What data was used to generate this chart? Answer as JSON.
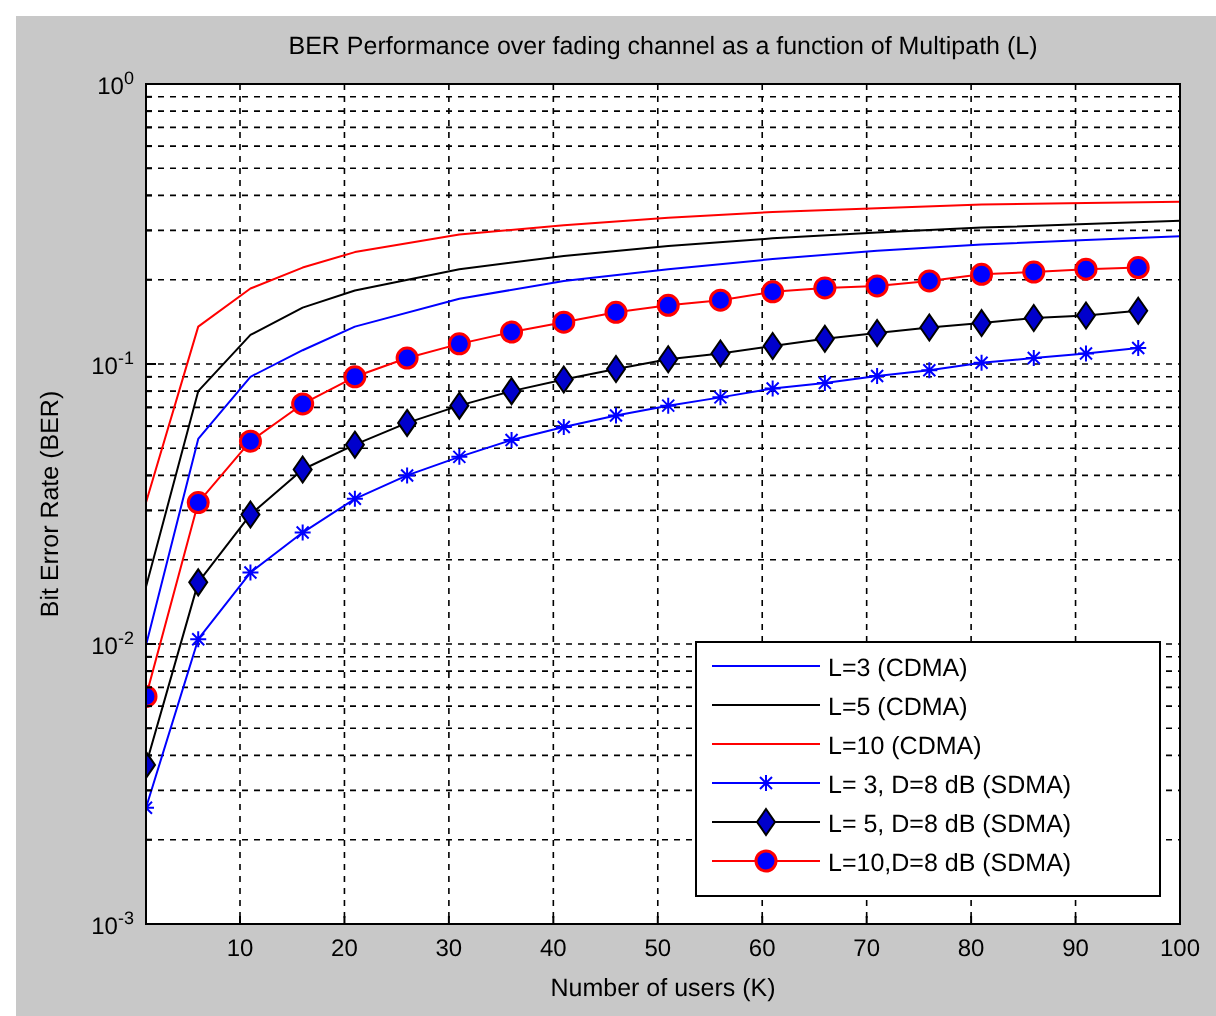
{
  "chart_data": {
    "type": "line",
    "title": "BER Performance over fading channel as a function of Multipath (L)",
    "xlabel": "Number of users (K)",
    "ylabel": "Bit Error Rate (BER)",
    "log": "y",
    "grid": true,
    "legend": "bottom right",
    "xlim": [
      1,
      100
    ],
    "xticks": [
      10,
      20,
      30,
      40,
      50,
      60,
      70,
      80,
      90,
      100
    ],
    "ylim": [
      0.001,
      1
    ],
    "yticks": [
      {
        "value": 0.001,
        "label": "10$^{-3}$"
      },
      {
        "value": 0.002,
        "label": null
      },
      {
        "value": 0.003,
        "label": null
      },
      {
        "value": 0.004,
        "label": null
      },
      {
        "value": 0.005,
        "label": null
      },
      {
        "value": 0.006,
        "label": null
      },
      {
        "value": 0.007,
        "label": null
      },
      {
        "value": 0.008,
        "label": null
      },
      {
        "value": 0.009,
        "label": null
      },
      {
        "value": 0.01,
        "label": "10$^{-2}$"
      },
      {
        "value": 0.02,
        "label": null
      },
      {
        "value": 0.03,
        "label": null
      },
      {
        "value": 0.04,
        "label": null
      },
      {
        "value": 0.05,
        "label": null
      },
      {
        "value": 0.06,
        "label": null
      },
      {
        "value": 0.07,
        "label": null
      },
      {
        "value": 0.08,
        "label": null
      },
      {
        "value": 0.09,
        "label": null
      },
      {
        "value": 0.1,
        "label": "10$^{-1}$"
      },
      {
        "value": 0.2,
        "label": null
      },
      {
        "value": 0.3,
        "label": null
      },
      {
        "value": 0.4,
        "label": null
      },
      {
        "value": 0.5,
        "label": null
      },
      {
        "value": 0.6,
        "label": null
      },
      {
        "value": 0.7,
        "label": null
      },
      {
        "value": 0.8,
        "label": null
      },
      {
        "value": 0.9,
        "label": null
      },
      {
        "value": 1,
        "label": "10$^{0}$"
      }
    ],
    "series": [
      {
        "name": "L=3 (CDMA)",
        "color": "#0000ff",
        "marker": "none",
        "x": [
          1,
          6,
          11,
          16,
          21,
          31,
          41,
          51,
          61,
          71,
          81,
          91,
          100
        ],
        "values": [
          0.0099,
          0.054,
          0.09,
          0.112,
          0.136,
          0.171,
          0.198,
          0.218,
          0.237,
          0.254,
          0.267,
          0.277,
          0.286
        ]
      },
      {
        "name": "L=5 (CDMA)",
        "color": "#000000",
        "marker": "none",
        "x": [
          1,
          6,
          11,
          16,
          21,
          31,
          41,
          51,
          61,
          71,
          81,
          91,
          100
        ],
        "values": [
          0.016,
          0.08,
          0.127,
          0.159,
          0.183,
          0.218,
          0.243,
          0.264,
          0.281,
          0.295,
          0.307,
          0.316,
          0.325
        ]
      },
      {
        "name": "L=10 (CDMA)",
        "color": "#ff0000",
        "marker": "none",
        "x": [
          1,
          6,
          11,
          16,
          21,
          31,
          41,
          51,
          61,
          71,
          81,
          91,
          100
        ],
        "values": [
          0.032,
          0.136,
          0.186,
          0.221,
          0.251,
          0.29,
          0.313,
          0.333,
          0.349,
          0.36,
          0.371,
          0.376,
          0.38
        ]
      },
      {
        "name": "L= 3, D=8 dB (SDMA)",
        "color": "#0000ff",
        "marker": "cross",
        "x": [
          1,
          6,
          11,
          16,
          21,
          26,
          31,
          36,
          41,
          46,
          51,
          56,
          61,
          66,
          71,
          76,
          81,
          86,
          91,
          96
        ],
        "values": [
          0.0026,
          0.0104,
          0.018,
          0.025,
          0.033,
          0.04,
          0.0466,
          0.0535,
          0.0596,
          0.0655,
          0.071,
          0.076,
          0.0818,
          0.0855,
          0.0906,
          0.095,
          0.101,
          0.105,
          0.109,
          0.114
        ]
      },
      {
        "name": "L= 5, D=8 dB (SDMA)",
        "color": "#000000",
        "marker": "diamond",
        "x": [
          1,
          6,
          11,
          16,
          21,
          26,
          31,
          36,
          41,
          46,
          51,
          56,
          61,
          66,
          71,
          76,
          81,
          86,
          91,
          96
        ],
        "values": [
          0.0037,
          0.0166,
          0.029,
          0.042,
          0.0515,
          0.0616,
          0.071,
          0.08,
          0.088,
          0.096,
          0.104,
          0.109,
          0.116,
          0.123,
          0.129,
          0.135,
          0.14,
          0.146,
          0.149,
          0.155
        ]
      },
      {
        "name": "L=10,D=8 dB (SDMA)",
        "color": "#ff0000",
        "marker": "circle",
        "x": [
          1,
          6,
          11,
          16,
          21,
          26,
          31,
          36,
          41,
          46,
          51,
          56,
          61,
          66,
          71,
          76,
          81,
          86,
          91,
          96
        ],
        "values": [
          0.0065,
          0.032,
          0.053,
          0.072,
          0.09,
          0.105,
          0.118,
          0.13,
          0.141,
          0.153,
          0.162,
          0.169,
          0.181,
          0.187,
          0.19,
          0.198,
          0.209,
          0.213,
          0.218,
          0.221
        ]
      }
    ]
  }
}
